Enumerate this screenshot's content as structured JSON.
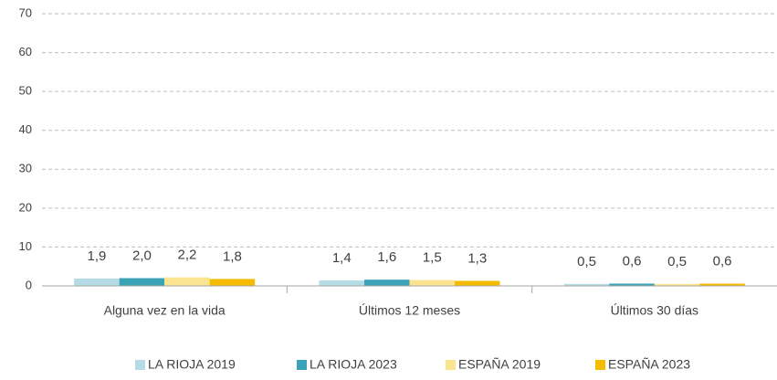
{
  "chart_data": {
    "type": "bar",
    "categories": [
      "Alguna vez en la vida",
      "Últimos 12 meses",
      "Últimos 30 días"
    ],
    "series": [
      {
        "name": "LA RIOJA 2019",
        "color": "#b5dce4",
        "values": [
          1.9,
          1.4,
          0.5
        ],
        "value_labels": [
          "1,9",
          "1,4",
          "0,5"
        ]
      },
      {
        "name": "LA RIOJA 2023",
        "color": "#3ba3b8",
        "values": [
          2.0,
          1.6,
          0.6
        ],
        "value_labels": [
          "2,0",
          "1,6",
          "0,6"
        ]
      },
      {
        "name": "ESPAÑA 2019",
        "color": "#fbe48f",
        "values": [
          2.2,
          1.5,
          0.5
        ],
        "value_labels": [
          "2,2",
          "1,5",
          "0,5"
        ]
      },
      {
        "name": "ESPAÑA 2023",
        "color": "#f5bb00",
        "values": [
          1.8,
          1.3,
          0.6
        ],
        "value_labels": [
          "1,8",
          "1,3",
          "0,6"
        ]
      }
    ],
    "ylim": [
      0,
      70
    ],
    "yticks": [
      0,
      10,
      20,
      30,
      40,
      50,
      60,
      70
    ],
    "grid": true,
    "legend": "bottom"
  }
}
